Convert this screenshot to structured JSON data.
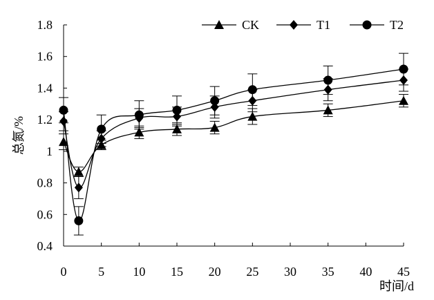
{
  "chart_data": {
    "type": "line",
    "title": "",
    "xlabel": "时间/d",
    "ylabel": "总氮/%",
    "xlim": [
      0,
      45
    ],
    "ylim": [
      0.4,
      1.8
    ],
    "x_ticks": [
      "0",
      "5",
      "10",
      "15",
      "20",
      "25",
      "30",
      "35",
      "40",
      "45"
    ],
    "y_ticks": [
      "0.4",
      "0.6",
      "0.8",
      "1",
      "1.2",
      "1.4",
      "1.6",
      "1.8"
    ],
    "grid": false,
    "legend_position": "top-right",
    "x": [
      0,
      2,
      5,
      10,
      15,
      20,
      25,
      35,
      45
    ],
    "series": [
      {
        "name": "CK",
        "marker": "triangle",
        "values": [
          1.06,
          0.87,
          1.04,
          1.12,
          1.14,
          1.15,
          1.22,
          1.26,
          1.32
        ],
        "errors": [
          0.05,
          0.03,
          0.03,
          0.04,
          0.04,
          0.04,
          0.05,
          0.04,
          0.04
        ]
      },
      {
        "name": "T1",
        "marker": "diamond",
        "values": [
          1.19,
          0.77,
          1.08,
          1.21,
          1.22,
          1.28,
          1.32,
          1.39,
          1.45
        ],
        "errors": [
          0.06,
          0.07,
          0.05,
          0.06,
          0.06,
          0.07,
          0.07,
          0.07,
          0.07
        ]
      },
      {
        "name": "T2",
        "marker": "circle",
        "values": [
          1.26,
          0.56,
          1.14,
          1.23,
          1.26,
          1.32,
          1.39,
          1.45,
          1.52
        ],
        "errors": [
          0.08,
          0.09,
          0.09,
          0.09,
          0.09,
          0.09,
          0.1,
          0.09,
          0.1
        ]
      }
    ]
  }
}
